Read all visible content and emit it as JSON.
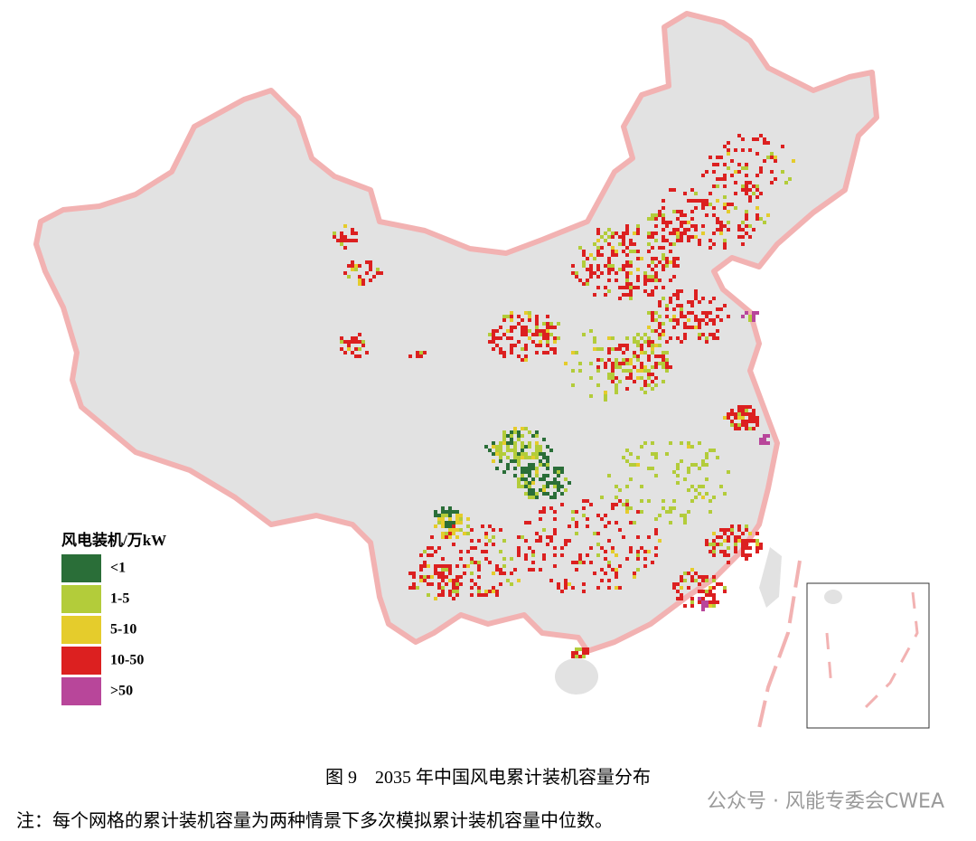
{
  "legend": {
    "title": "风电装机/万kW",
    "items": [
      {
        "label": "<1",
        "color": "#2a6e38"
      },
      {
        "label": "1-5",
        "color": "#b3cc3a"
      },
      {
        "label": "5-10",
        "color": "#e5cc2c"
      },
      {
        "label": "10-50",
        "color": "#dc2020"
      },
      {
        "label": ">50",
        "color": "#b8469a"
      }
    ]
  },
  "caption": "图 9　2035 年中国风电累计装机容量分布",
  "note": "注：每个网格的累计装机容量为两种情景下多次模拟累计装机容量中位数。",
  "watermark": "公众号 · 风能专委会CWEA"
}
